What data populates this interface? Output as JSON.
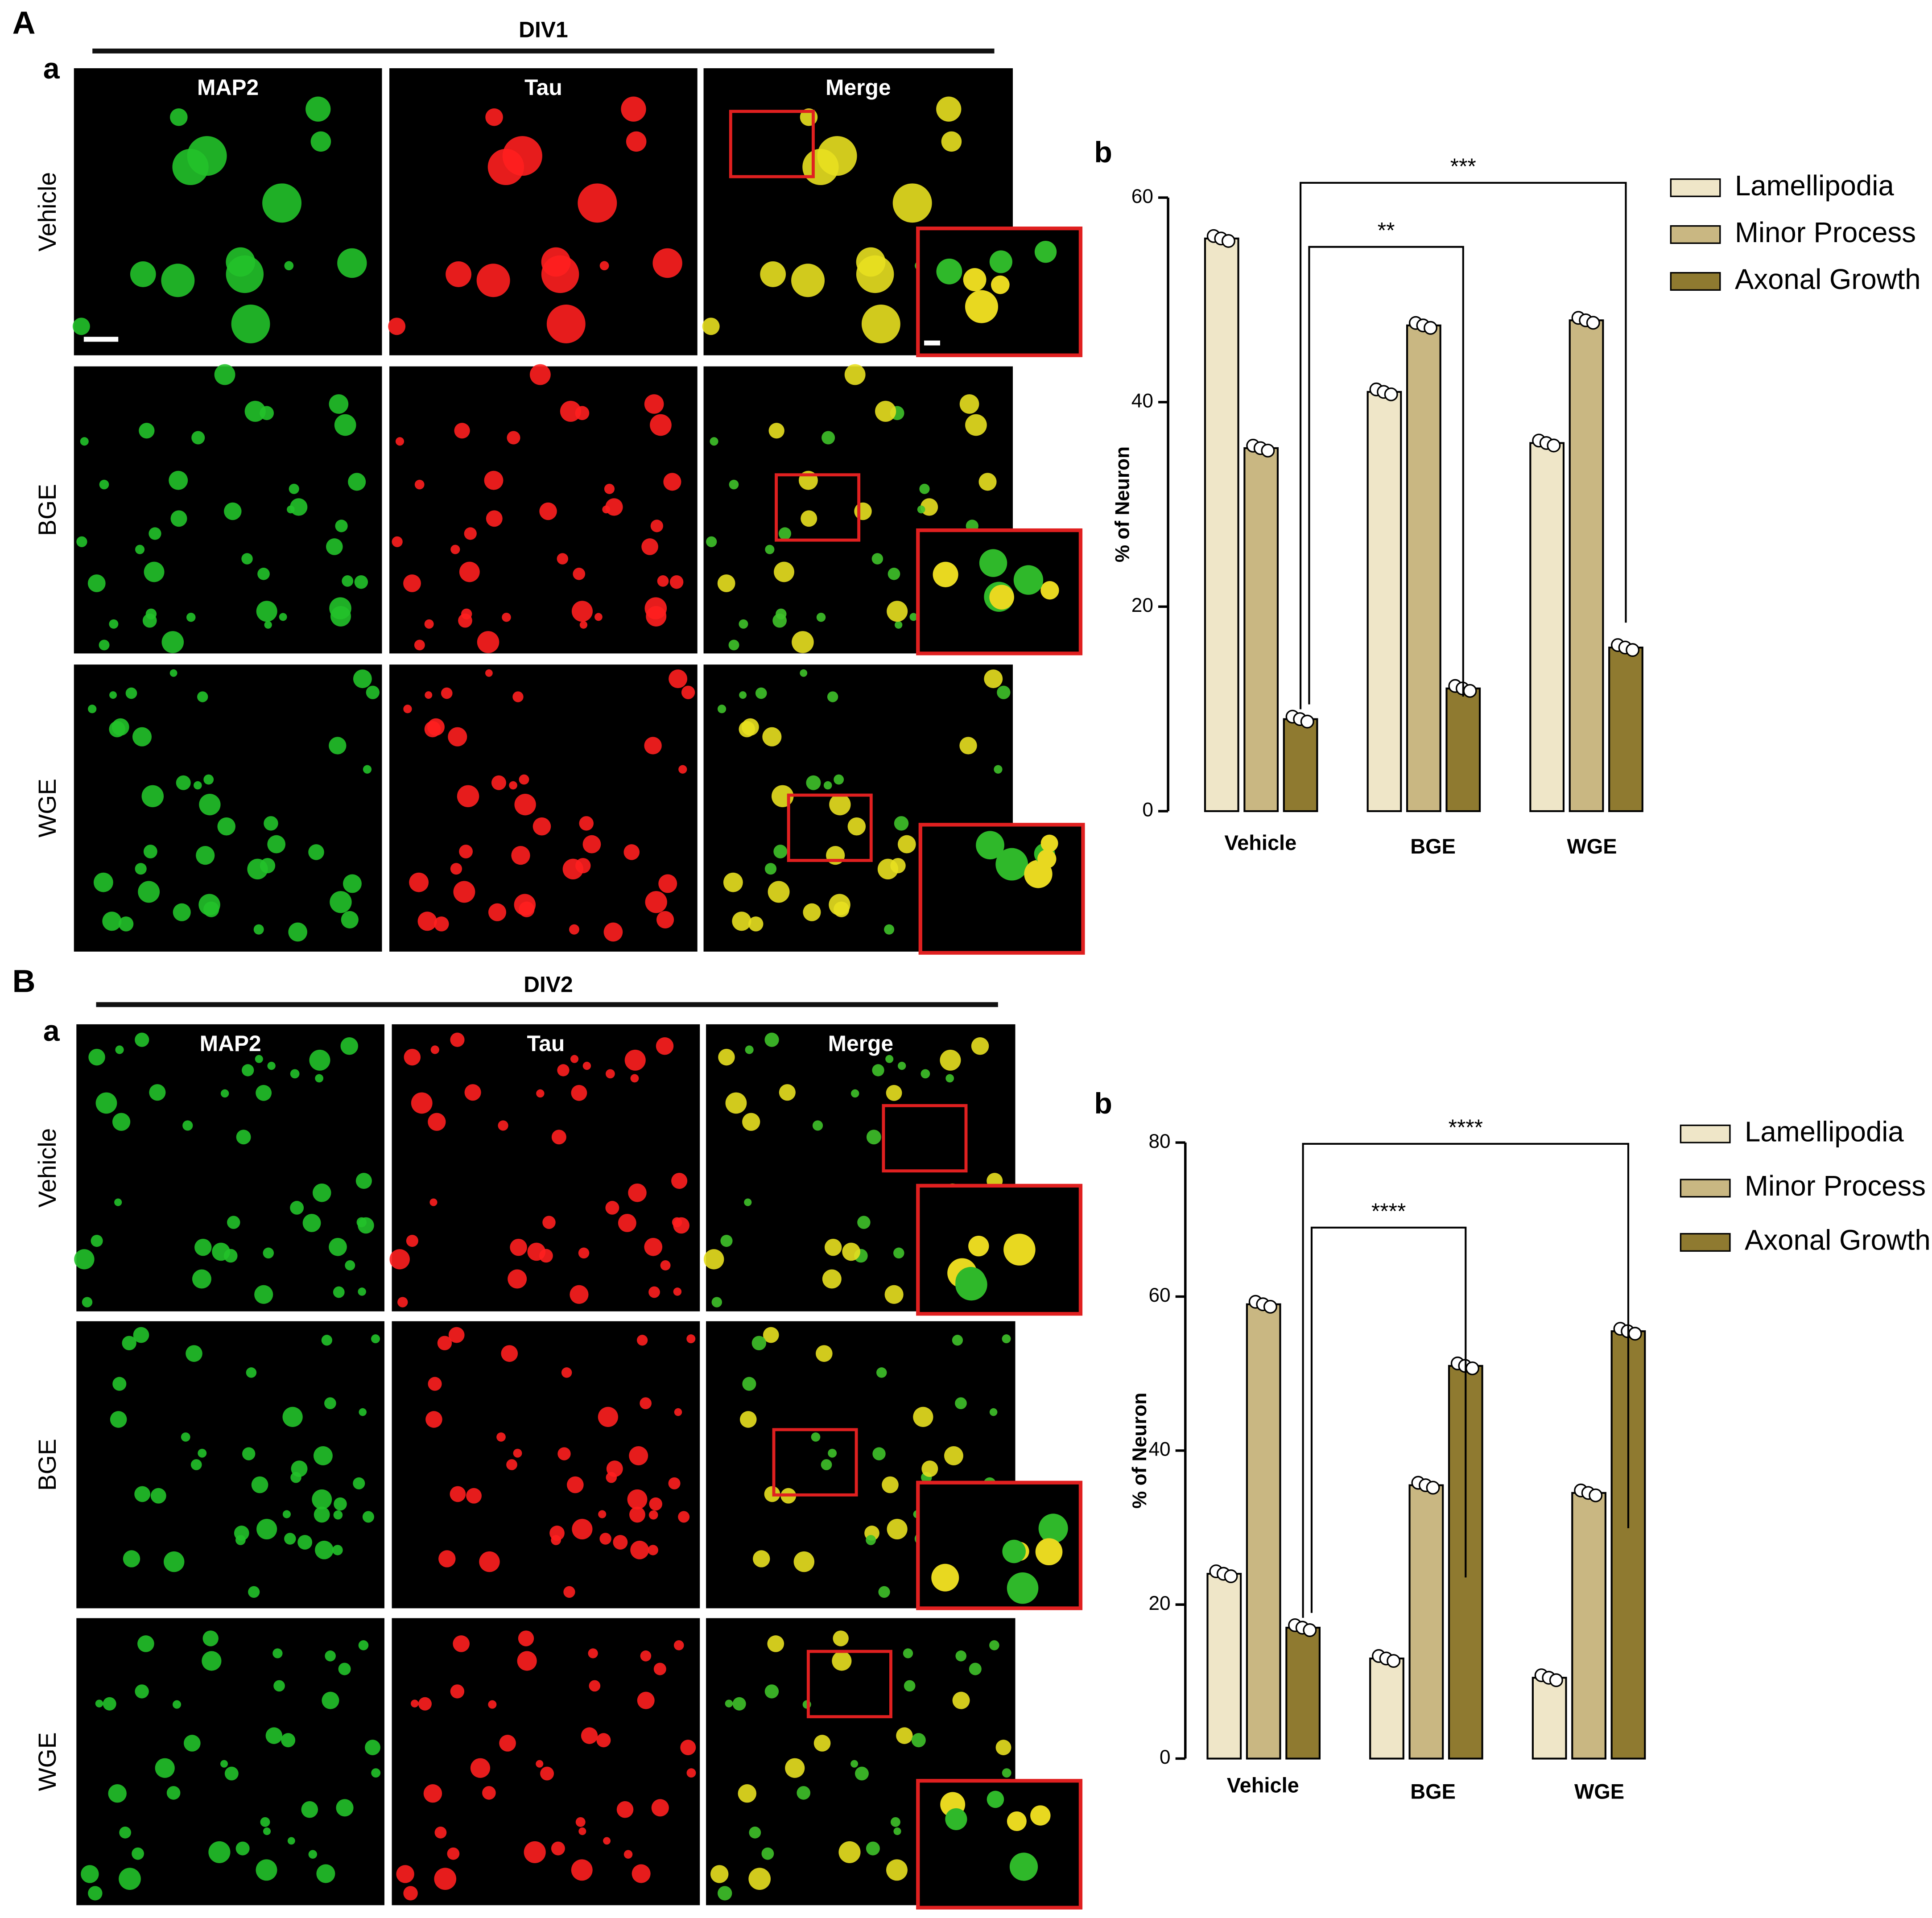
{
  "panels": [
    {
      "label": "A",
      "title": "DIV1",
      "sublabel": "a",
      "columns": [
        "MAP2",
        "Tau",
        "Merge"
      ],
      "rows": [
        "Vehicle",
        "BGE",
        "WGE"
      ]
    },
    {
      "label": "B",
      "title": "DIV2",
      "sublabel": "a",
      "columns": [
        "MAP2",
        "Tau",
        "Merge"
      ],
      "rows": [
        "Vehicle",
        "BGE",
        "WGE"
      ]
    }
  ],
  "chart_data": [
    {
      "type": "bar",
      "panel_label": "b",
      "ylabel": "% of Neuron",
      "categories": [
        "Vehicle",
        "BGE",
        "WGE"
      ],
      "series": [
        {
          "name": "Lamellipodia",
          "color": "#efe6c8",
          "values": [
            56,
            41,
            36
          ]
        },
        {
          "name": "Minor Process",
          "color": "#c9b782",
          "values": [
            35.5,
            47.5,
            48
          ]
        },
        {
          "name": "Axonal Growth",
          "color": "#8f7a30",
          "values": [
            9,
            12,
            16
          ]
        }
      ],
      "ylim": [
        0,
        60
      ],
      "yticks": [
        0,
        20,
        40,
        60
      ],
      "annotations": [
        "**",
        "***"
      ],
      "legend": "upper right"
    },
    {
      "type": "bar",
      "panel_label": "b",
      "ylabel": "% of Neuron",
      "categories": [
        "Vehicle",
        "BGE",
        "WGE"
      ],
      "series": [
        {
          "name": "Lamellipodia",
          "color": "#efe6c8",
          "values": [
            24,
            13,
            10.5
          ]
        },
        {
          "name": "Minor Process",
          "color": "#c9b782",
          "values": [
            59,
            35.5,
            34.5
          ]
        },
        {
          "name": "Axonal Growth",
          "color": "#8f7a30",
          "values": [
            17,
            51,
            55.5
          ]
        }
      ],
      "ylim": [
        0,
        80
      ],
      "yticks": [
        0,
        20,
        40,
        60,
        80
      ],
      "annotations": [
        "****",
        "****"
      ],
      "legend": "upper right"
    }
  ]
}
